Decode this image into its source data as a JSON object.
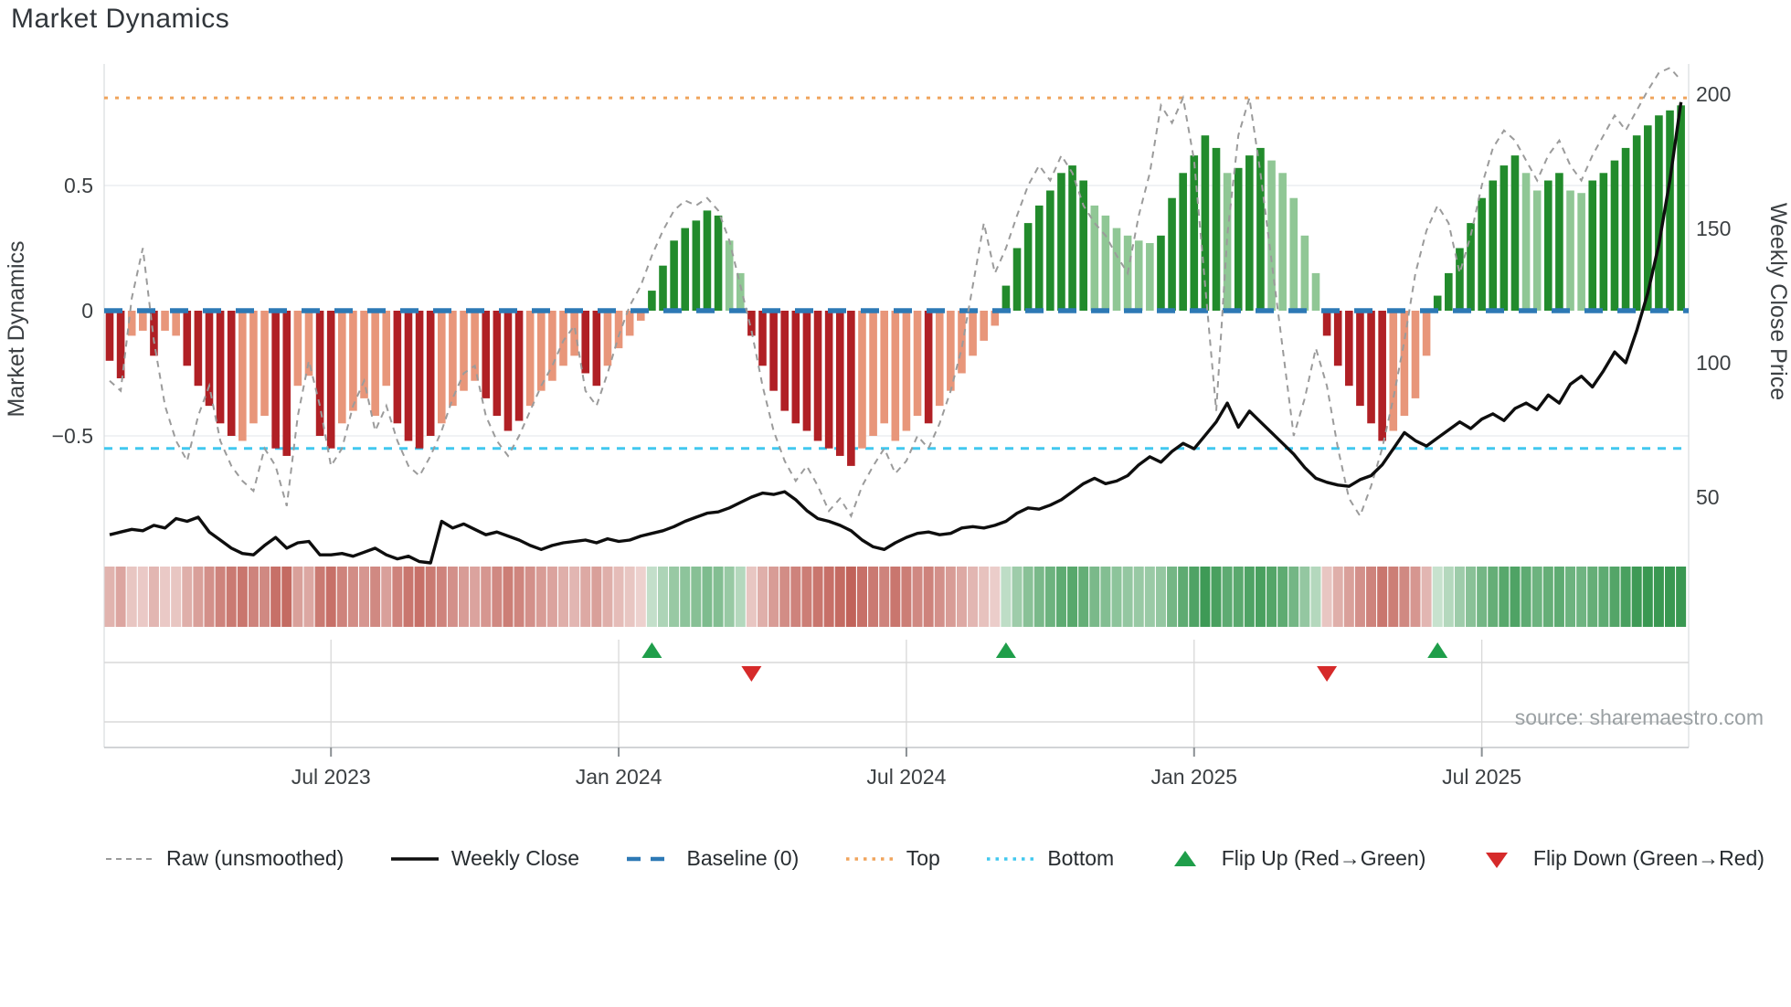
{
  "title": "Market Dynamics",
  "source": "source: sharemaestro.com",
  "left_axis": {
    "label": "Market Dynamics",
    "ticks": [
      {
        "label": "0.5",
        "value": 0.5
      },
      {
        "label": "0",
        "value": 0
      },
      {
        "label": "−0.5",
        "value": -0.5
      }
    ]
  },
  "right_axis": {
    "label": "Weekly Close Price",
    "ticks": [
      {
        "label": "200",
        "price": 200
      },
      {
        "label": "150",
        "price": 150
      },
      {
        "label": "100",
        "price": 100
      },
      {
        "label": "50",
        "price": 50
      }
    ]
  },
  "x_axis": {
    "ticks": [
      {
        "label": "Jul 2023",
        "week": 20
      },
      {
        "label": "Jan 2024",
        "week": 46
      },
      {
        "label": "Jul 2024",
        "week": 72
      },
      {
        "label": "Jan 2025",
        "week": 98
      },
      {
        "label": "Jul 2025",
        "week": 124
      }
    ]
  },
  "legend": [
    {
      "type": "dash-gray",
      "label": "Raw (unsmoothed)"
    },
    {
      "type": "line-black",
      "label": "Weekly Close"
    },
    {
      "type": "dash-blue",
      "label": "Baseline (0)"
    },
    {
      "type": "dot-orange",
      "label": "Top"
    },
    {
      "type": "dot-cyan",
      "label": "Bottom"
    },
    {
      "type": "tri-up-green",
      "label": "Flip Up (Red→Green)"
    },
    {
      "type": "tri-down-red",
      "label": "Flip Down (Green→Red)"
    }
  ],
  "colors": {
    "bar_dark_red": "#b02025",
    "bar_light_red": "#e8967a",
    "bar_dark_green": "#228b2c",
    "bar_light_green": "#90c795",
    "baseline_blue": "#2d79b5",
    "top_orange": "#f0a45c",
    "bottom_cyan": "#41c8ef",
    "raw_gray": "#9b9b9b",
    "close_black": "#0e0e0e",
    "flip_up_green": "#1f9e4a",
    "flip_down_red": "#d62a2a",
    "heat_red": "#ba5046",
    "heat_green": "#3a9852",
    "grid": "#ebedf0",
    "band_grid": "#d8d8d8",
    "axis_line": "#c4c6c8",
    "tick_text": "#3c4043",
    "source_text": "#9aa0a3"
  },
  "chart_data": {
    "type": "combo: weekly oscillator bars + heatmap strip + flip markers + price/raw lines",
    "weeks": 143,
    "baseline": 0,
    "top_level": 0.85,
    "bottom_level": -0.55,
    "left_ylim": [
      -1.05,
      0.99
    ],
    "right_axis_prices": [
      50,
      100,
      150,
      200
    ],
    "flip_up_weeks": [
      49,
      81,
      120
    ],
    "flip_down_weeks": [
      58,
      110
    ],
    "bar_shade": "ddlldlldddddllldd lldd lllll dddd llll dddd lllll dd llll ddddddd ll dddddddddd llllll d llllll dddddddd llllll dddddd l ddd lllll dddddd llll dddddddd ll dd ll ddddddddd",
    "oscillator": [
      -0.2,
      -0.27,
      -0.1,
      -0.08,
      -0.18,
      -0.08,
      -0.1,
      -0.22,
      -0.3,
      -0.38,
      -0.45,
      -0.5,
      -0.52,
      -0.45,
      -0.42,
      -0.55,
      -0.58,
      -0.3,
      -0.26,
      -0.5,
      -0.55,
      -0.45,
      -0.4,
      -0.35,
      -0.42,
      -0.3,
      -0.45,
      -0.52,
      -0.55,
      -0.5,
      -0.45,
      -0.38,
      -0.32,
      -0.28,
      -0.35,
      -0.42,
      -0.48,
      -0.44,
      -0.38,
      -0.32,
      -0.28,
      -0.22,
      -0.18,
      -0.25,
      -0.3,
      -0.22,
      -0.15,
      -0.1,
      -0.04,
      0.08,
      0.18,
      0.28,
      0.33,
      0.36,
      0.4,
      0.38,
      0.28,
      0.15,
      -0.1,
      -0.22,
      -0.32,
      -0.4,
      -0.45,
      -0.48,
      -0.52,
      -0.55,
      -0.58,
      -0.62,
      -0.55,
      -0.5,
      -0.45,
      -0.52,
      -0.48,
      -0.42,
      -0.45,
      -0.38,
      -0.32,
      -0.25,
      -0.18,
      -0.12,
      -0.06,
      0.1,
      0.25,
      0.35,
      0.42,
      0.48,
      0.55,
      0.58,
      0.52,
      0.42,
      0.38,
      0.33,
      0.3,
      0.28,
      0.27,
      0.3,
      0.45,
      0.55,
      0.62,
      0.7,
      0.65,
      0.55,
      0.57,
      0.62,
      0.65,
      0.6,
      0.55,
      0.45,
      0.3,
      0.15,
      -0.1,
      -0.22,
      -0.3,
      -0.38,
      -0.45,
      -0.52,
      -0.48,
      -0.42,
      -0.35,
      -0.18,
      0.06,
      0.15,
      0.25,
      0.35,
      0.45,
      0.52,
      0.58,
      0.62,
      0.55,
      0.48,
      0.52,
      0.55,
      0.48,
      0.47,
      0.52,
      0.55,
      0.6,
      0.65,
      0.7,
      0.74,
      0.78,
      0.8,
      0.82
    ],
    "raw": [
      -0.28,
      -0.32,
      0.05,
      0.25,
      -0.12,
      -0.38,
      -0.52,
      -0.6,
      -0.42,
      -0.3,
      -0.52,
      -0.62,
      -0.68,
      -0.72,
      -0.55,
      -0.62,
      -0.78,
      -0.42,
      -0.2,
      -0.38,
      -0.62,
      -0.55,
      -0.38,
      -0.28,
      -0.48,
      -0.38,
      -0.52,
      -0.62,
      -0.66,
      -0.58,
      -0.48,
      -0.35,
      -0.25,
      -0.22,
      -0.42,
      -0.52,
      -0.58,
      -0.5,
      -0.4,
      -0.3,
      -0.22,
      -0.12,
      -0.06,
      -0.32,
      -0.38,
      -0.25,
      -0.1,
      0.02,
      0.1,
      0.22,
      0.32,
      0.4,
      0.44,
      0.42,
      0.45,
      0.4,
      0.28,
      0.1,
      -0.08,
      -0.3,
      -0.48,
      -0.6,
      -0.68,
      -0.62,
      -0.7,
      -0.8,
      -0.75,
      -0.82,
      -0.7,
      -0.62,
      -0.55,
      -0.65,
      -0.6,
      -0.5,
      -0.55,
      -0.45,
      -0.32,
      -0.15,
      0.1,
      0.35,
      0.15,
      0.25,
      0.38,
      0.5,
      0.58,
      0.52,
      0.62,
      0.55,
      0.42,
      0.35,
      0.3,
      0.22,
      0.15,
      0.38,
      0.55,
      0.82,
      0.75,
      0.85,
      0.6,
      0.1,
      -0.4,
      0.3,
      0.7,
      0.85,
      0.55,
      0.2,
      -0.15,
      -0.5,
      -0.35,
      -0.15,
      -0.3,
      -0.55,
      -0.75,
      -0.82,
      -0.7,
      -0.55,
      -0.35,
      -0.12,
      0.15,
      0.32,
      0.42,
      0.35,
      0.15,
      0.3,
      0.5,
      0.65,
      0.72,
      0.68,
      0.6,
      0.52,
      0.62,
      0.68,
      0.58,
      0.52,
      0.62,
      0.7,
      0.78,
      0.72,
      0.8,
      0.88,
      0.95,
      0.97,
      0.92
    ],
    "weekly_close": [
      36,
      37,
      38,
      37.5,
      39.5,
      38.5,
      42,
      41,
      42.5,
      37,
      34,
      31,
      29,
      28.5,
      32,
      35,
      31,
      33,
      33.5,
      28.5,
      28.5,
      29,
      28,
      29.5,
      31,
      28.5,
      27,
      28,
      26,
      25.5,
      41,
      38.5,
      40,
      38,
      36,
      37,
      35.5,
      34,
      32,
      30.5,
      32,
      33,
      33.5,
      34,
      33,
      34.5,
      33.5,
      34,
      35.5,
      36.5,
      37.5,
      39,
      41,
      42.5,
      44,
      44.5,
      46,
      48,
      50,
      51.5,
      51,
      52,
      49,
      45,
      42,
      41,
      39.5,
      37.5,
      34,
      31.5,
      30.5,
      33,
      35,
      36.5,
      37,
      36,
      36.5,
      38.5,
      39,
      38.5,
      39.5,
      41,
      44,
      46,
      45.5,
      47,
      49,
      52,
      55,
      57,
      55,
      56,
      58,
      62,
      65,
      63,
      67,
      70,
      68,
      73,
      78,
      85,
      76,
      82,
      78,
      74,
      70,
      66,
      61,
      57,
      55.5,
      54.5,
      54,
      56.5,
      58,
      62,
      68,
      74,
      71,
      69,
      72,
      75,
      78,
      75.5,
      79,
      81,
      78.5,
      83,
      85,
      82.5,
      88,
      85,
      92,
      95,
      91,
      97,
      104,
      100,
      112,
      126,
      144,
      168,
      197
    ]
  }
}
